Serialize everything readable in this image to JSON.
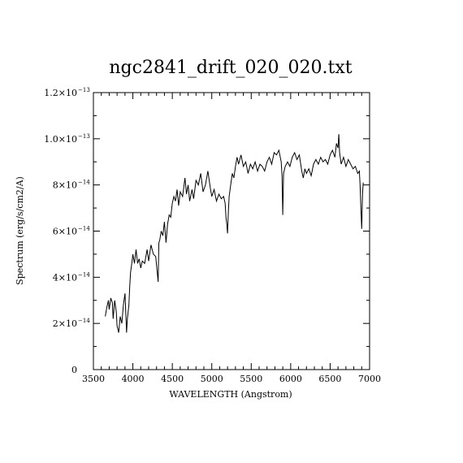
{
  "chart_data": {
    "type": "line",
    "title": "ngc2841_drift_020_020.txt",
    "xlabel": "WAVELENGTH (Angstrom)",
    "ylabel": "Spectrum (erg/s/cm2/A)",
    "xlim": [
      3500,
      7000
    ],
    "ylim": [
      0,
      1.2e-13
    ],
    "grid": false,
    "legend": "none",
    "x_ticks": [
      3500,
      4000,
      4500,
      5000,
      5500,
      6000,
      6500,
      7000
    ],
    "x_tick_labels": [
      "3500",
      "4000",
      "4500",
      "5000",
      "5500",
      "6000",
      "6500",
      "7000"
    ],
    "y_ticks": [
      {
        "value": 0,
        "mantissa": "0",
        "exponent": ""
      },
      {
        "value": 2e-14,
        "mantissa": "2×10",
        "exponent": "−14"
      },
      {
        "value": 4e-14,
        "mantissa": "4×10",
        "exponent": "−14"
      },
      {
        "value": 6e-14,
        "mantissa": "6×10",
        "exponent": "−14"
      },
      {
        "value": 8e-14,
        "mantissa": "8×10",
        "exponent": "−14"
      },
      {
        "value": 1e-13,
        "mantissa": "1.0×10",
        "exponent": "−13"
      },
      {
        "value": 1.2e-13,
        "mantissa": "1.2×10",
        "exponent": "−13"
      }
    ],
    "series": [
      {
        "x": [
          3650,
          3670,
          3690,
          3700,
          3720,
          3740,
          3750,
          3770,
          3790,
          3800,
          3820,
          3840,
          3860,
          3880,
          3900,
          3910,
          3920,
          3930,
          3950,
          3960,
          3970,
          3990,
          4000,
          4020,
          4040,
          4060,
          4080,
          4100,
          4120,
          4150,
          4180,
          4200,
          4230,
          4260,
          4290,
          4320,
          4330,
          4340,
          4360,
          4380,
          4400,
          4420,
          4440,
          4460,
          4480,
          4500,
          4520,
          4540,
          4560,
          4580,
          4600,
          4630,
          4660,
          4680,
          4700,
          4720,
          4750,
          4770,
          4800,
          4830,
          4860,
          4890,
          4920,
          4950,
          4980,
          5000,
          5030,
          5060,
          5090,
          5120,
          5150,
          5170,
          5180,
          5190,
          5200,
          5210,
          5220,
          5240,
          5260,
          5280,
          5300,
          5320,
          5340,
          5370,
          5400,
          5430,
          5460,
          5490,
          5520,
          5550,
          5580,
          5610,
          5640,
          5670,
          5700,
          5730,
          5760,
          5790,
          5820,
          5850,
          5880,
          5890,
          5900,
          5910,
          5930,
          5960,
          5990,
          6020,
          6050,
          6080,
          6110,
          6140,
          6160,
          6180,
          6200,
          6230,
          6260,
          6290,
          6320,
          6350,
          6380,
          6410,
          6440,
          6470,
          6500,
          6530,
          6560,
          6580,
          6600,
          6610,
          6620,
          6640,
          6670,
          6700,
          6730,
          6760,
          6790,
          6820,
          6850,
          6870,
          6880,
          6890,
          6900,
          6910,
          6920
        ],
        "y": [
          2.3e-14,
          2.7e-14,
          3e-14,
          2.6e-14,
          3.1e-14,
          2.9e-14,
          2.2e-14,
          3e-14,
          2.5e-14,
          1.9e-14,
          1.6e-14,
          2.3e-14,
          2e-14,
          2.8e-14,
          3.3e-14,
          2.5e-14,
          1.6e-14,
          2.2e-14,
          2.8e-14,
          3.6e-14,
          4.2e-14,
          4.7e-14,
          5e-14,
          4.6e-14,
          5.2e-14,
          4.6e-14,
          4.8e-14,
          4.4e-14,
          4.7e-14,
          4.6e-14,
          5.2e-14,
          4.7e-14,
          5.4e-14,
          5e-14,
          4.9e-14,
          3.8e-14,
          5.5e-14,
          5.6e-14,
          6e-14,
          5.8e-14,
          6.4e-14,
          5.5e-14,
          6.3e-14,
          6.7e-14,
          6.6e-14,
          7.2e-14,
          7.5e-14,
          7.3e-14,
          7.8e-14,
          7.1e-14,
          7.7e-14,
          7.5e-14,
          8.3e-14,
          7.6e-14,
          8e-14,
          7.3e-14,
          7.8e-14,
          7.4e-14,
          8.2e-14,
          8e-14,
          8.5e-14,
          7.7e-14,
          8e-14,
          8.6e-14,
          7.9e-14,
          7.5e-14,
          7.8e-14,
          7.3e-14,
          7.6e-14,
          7.4e-14,
          7.5e-14,
          7.2e-14,
          6.6e-14,
          6.3e-14,
          5.9e-14,
          6.8e-14,
          7.5e-14,
          8e-14,
          8.5e-14,
          8.3e-14,
          8.8e-14,
          9.2e-14,
          8.9e-14,
          9.3e-14,
          8.8e-14,
          9e-14,
          8.5e-14,
          8.9e-14,
          8.7e-14,
          9e-14,
          8.6e-14,
          8.9e-14,
          8.8e-14,
          8.6e-14,
          9e-14,
          9.2e-14,
          8.9e-14,
          9.4e-14,
          9.3e-14,
          9.5e-14,
          9e-14,
          8.4e-14,
          6.7e-14,
          8.5e-14,
          8.8e-14,
          9e-14,
          8.8e-14,
          9.2e-14,
          9.4e-14,
          9.1e-14,
          9.3e-14,
          8.6e-14,
          8.3e-14,
          8.7e-14,
          8.5e-14,
          8.7e-14,
          8.4e-14,
          8.9e-14,
          9.1e-14,
          8.9e-14,
          9.2e-14,
          9e-14,
          9.1e-14,
          8.9e-14,
          9.3e-14,
          9.5e-14,
          9.2e-14,
          9.8e-14,
          9.6e-14,
          1.02e-13,
          9.4e-14,
          8.9e-14,
          9.2e-14,
          8.8e-14,
          9.1e-14,
          8.9e-14,
          8.7e-14,
          8.8e-14,
          8.5e-14,
          8.6e-14,
          8e-14,
          7e-14,
          6.1e-14,
          7.6e-14,
          8.1e-14
        ]
      }
    ]
  }
}
